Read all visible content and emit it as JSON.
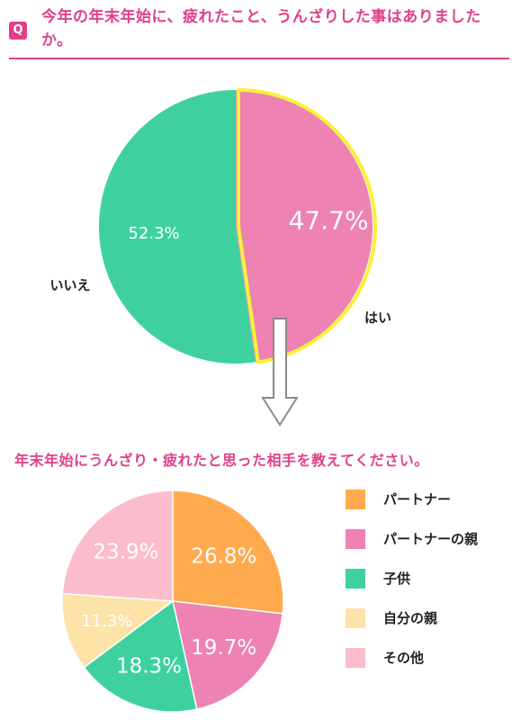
{
  "question": {
    "badge": "Q",
    "text": "今年の年末年始に、疲れたこと、うんざりした事はありましたか。"
  },
  "subtitle": "年末年始にうんざり・疲れたと思った相手を教えてください。",
  "chart_data": [
    {
      "type": "pie",
      "title": "今年の年末年始に、疲れたこと、うんざりした事はありましたか。",
      "categories": [
        "はい",
        "いいえ"
      ],
      "values": [
        47.7,
        52.3
      ],
      "value_labels": [
        "47.7%",
        "52.3%"
      ],
      "colors": [
        "#ee82b2",
        "#3ed19f"
      ],
      "highlight": {
        "category": "はい",
        "outline_color": "#f7f23a"
      },
      "legend": "none"
    },
    {
      "type": "pie",
      "title": "年末年始にうんざり・疲れたと思った相手を教えてください。",
      "categories": [
        "パートナー",
        "パートナーの親",
        "子供",
        "自分の親",
        "その他"
      ],
      "values": [
        26.8,
        19.7,
        18.3,
        11.3,
        23.9
      ],
      "value_labels": [
        "26.8%",
        "19.7%",
        "18.3%",
        "11.3%",
        "23.9%"
      ],
      "colors": [
        "#ffaa4e",
        "#ee82b2",
        "#3ed19f",
        "#fce3a8",
        "#fbbccb"
      ],
      "legend": "right"
    }
  ]
}
